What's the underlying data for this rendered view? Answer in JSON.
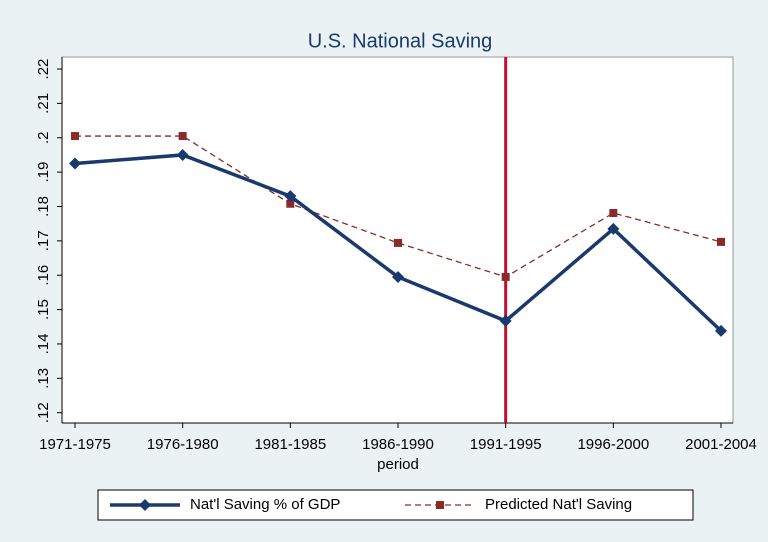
{
  "chart_data": {
    "type": "line",
    "title": "U.S. National Saving",
    "x_label": "period",
    "categories": [
      "1971-1975",
      "1976-1980",
      "1981-1985",
      "1986-1990",
      "1991-1995",
      "1996-2000",
      "2001-2004"
    ],
    "series": [
      {
        "name": "Nat'l Saving % of GDP",
        "color": "#1a3a6e",
        "marker": "diamond",
        "dashed": false,
        "values": [
          0.1925,
          0.195,
          0.183,
          0.1595,
          0.1467,
          0.1735,
          0.1438
        ]
      },
      {
        "name": "Predicted Nat'l Saving",
        "color": "#8b2a2a",
        "marker": "square",
        "dashed": true,
        "values": [
          0.2005,
          0.2005,
          0.1808,
          0.1694,
          0.1595,
          0.1781,
          0.1697
        ]
      }
    ],
    "vline": "1991-1995",
    "vline_color": "#c0102e",
    "ylim": [
      0.117,
      0.2235
    ],
    "yticks": [
      {
        "value": 0.12,
        "label": ".12"
      },
      {
        "value": 0.13,
        "label": ".13"
      },
      {
        "value": 0.14,
        "label": ".14"
      },
      {
        "value": 0.15,
        "label": ".15"
      },
      {
        "value": 0.16,
        "label": ".16"
      },
      {
        "value": 0.17,
        "label": ".17"
      },
      {
        "value": 0.18,
        "label": ".18"
      },
      {
        "value": 0.19,
        "label": ".19"
      },
      {
        "value": 0.2,
        "label": ".2"
      },
      {
        "value": 0.21,
        "label": ".21"
      },
      {
        "value": 0.22,
        "label": ".22"
      }
    ],
    "grid": false,
    "legend": "bottom"
  }
}
